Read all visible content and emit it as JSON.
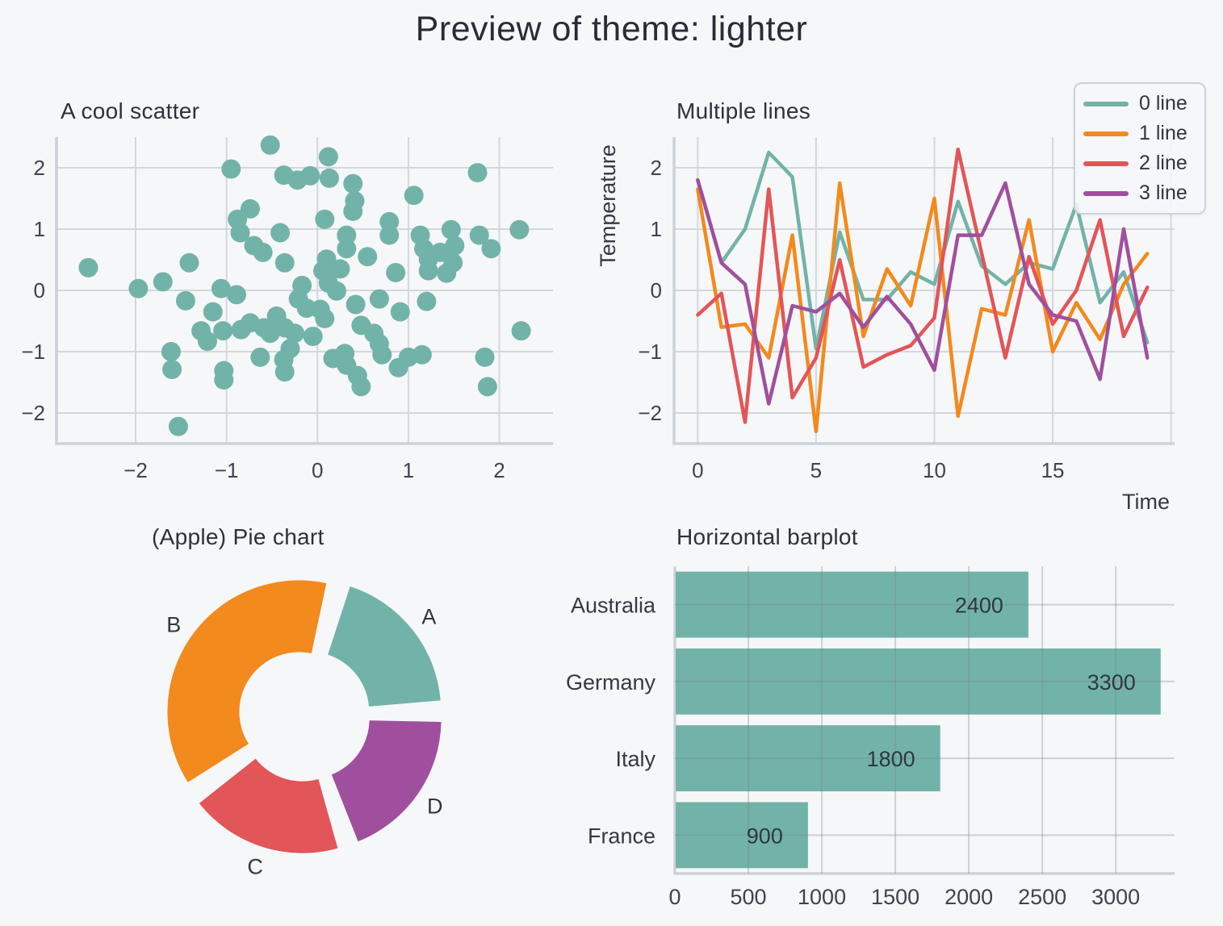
{
  "suptitle": {
    "text": "Preview of theme: lighter"
  },
  "theme": {
    "name": "lighter",
    "background": "#f6f7f9",
    "text_color": "#2b323c",
    "tick_color": "#3c444e",
    "grid_color": "#d3d7dc",
    "spine_color": "#ccd2d9",
    "palette": [
      "#72b3a9",
      "#f28a1d",
      "#e25558",
      "#a04f9e"
    ]
  },
  "chart_data": [
    {
      "id": "scatter",
      "type": "scatter",
      "title": "A cool scatter",
      "color": "#72b3a9",
      "xticks": [
        -2,
        -1,
        0,
        1,
        2
      ],
      "yticks": [
        -2,
        -1,
        0,
        1,
        2
      ],
      "xlim": [
        -2.87,
        2.59
      ],
      "ylim": [
        -2.5,
        2.5
      ],
      "points": [
        [
          -2.52,
          0.37
        ],
        [
          -1.97,
          0.03
        ],
        [
          -1.7,
          0.14
        ],
        [
          -1.41,
          0.45
        ],
        [
          -1.45,
          -0.17
        ],
        [
          -1.61,
          -1.0
        ],
        [
          -1.6,
          -1.29
        ],
        [
          -1.53,
          -2.22
        ],
        [
          -1.15,
          -0.35
        ],
        [
          -1.28,
          -0.66
        ],
        [
          -1.21,
          -0.83
        ],
        [
          -1.04,
          -0.66
        ],
        [
          -0.89,
          -0.07
        ],
        [
          -1.03,
          -1.31
        ],
        [
          -0.95,
          1.98
        ],
        [
          -0.88,
          1.16
        ],
        [
          -0.85,
          0.94
        ],
        [
          -0.74,
          1.33
        ],
        [
          -0.7,
          0.73
        ],
        [
          -0.52,
          2.37
        ],
        [
          -0.37,
          1.88
        ],
        [
          -0.36,
          0.45
        ],
        [
          -0.41,
          0.94
        ],
        [
          -0.22,
          1.8
        ],
        [
          -0.08,
          1.87
        ],
        [
          0.12,
          2.18
        ],
        [
          0.13,
          1.83
        ],
        [
          0.39,
          1.74
        ],
        [
          0.41,
          1.46
        ],
        [
          0.39,
          1.29
        ],
        [
          0.08,
          1.16
        ],
        [
          0.79,
          1.12
        ],
        [
          0.79,
          0.9
        ],
        [
          1.06,
          1.55
        ],
        [
          1.76,
          1.92
        ],
        [
          2.22,
          0.99
        ],
        [
          1.47,
          0.99
        ],
        [
          1.51,
          0.73
        ],
        [
          1.78,
          0.9
        ],
        [
          1.91,
          0.68
        ],
        [
          1.13,
          0.9
        ],
        [
          1.17,
          0.68
        ],
        [
          1.22,
          0.51
        ],
        [
          1.22,
          0.32
        ],
        [
          1.49,
          0.45
        ],
        [
          0.86,
          0.29
        ],
        [
          0.06,
          0.32
        ],
        [
          0.12,
          0.12
        ],
        [
          0.21,
          -0.01
        ],
        [
          -0.17,
          0.08
        ],
        [
          -0.21,
          -0.14
        ],
        [
          -0.12,
          -0.29
        ],
        [
          0.03,
          -0.31
        ],
        [
          0.08,
          -0.46
        ],
        [
          0.42,
          -0.23
        ],
        [
          0.48,
          -0.57
        ],
        [
          0.68,
          -0.14
        ],
        [
          0.91,
          -0.35
        ],
        [
          1.2,
          -0.18
        ],
        [
          0.32,
          0.9
        ],
        [
          0.32,
          0.68
        ],
        [
          -0.74,
          -0.53
        ],
        [
          -0.59,
          -0.61
        ],
        [
          -0.52,
          -0.7
        ],
        [
          -0.36,
          -0.61
        ],
        [
          -0.25,
          -0.7
        ],
        [
          -0.84,
          -0.64
        ],
        [
          -0.63,
          -1.09
        ],
        [
          -0.37,
          -1.13
        ],
        [
          -0.36,
          -1.33
        ],
        [
          0.17,
          -1.11
        ],
        [
          0.3,
          -1.03
        ],
        [
          0.32,
          -1.22
        ],
        [
          0.44,
          -1.39
        ],
        [
          0.48,
          -1.57
        ],
        [
          0.68,
          -0.87
        ],
        [
          0.71,
          -1.05
        ],
        [
          0.89,
          -1.26
        ],
        [
          1.0,
          -1.09
        ],
        [
          1.15,
          -1.05
        ],
        [
          1.84,
          -1.09
        ],
        [
          1.87,
          -1.57
        ],
        [
          2.24,
          -0.66
        ],
        [
          -1.03,
          -1.46
        ],
        [
          -1.06,
          0.03
        ],
        [
          0.1,
          0.51
        ],
        [
          -0.6,
          0.62
        ],
        [
          -0.3,
          -0.95
        ],
        [
          0.55,
          0.55
        ],
        [
          0.62,
          -0.7
        ],
        [
          1.35,
          0.62
        ],
        [
          1.42,
          0.28
        ],
        [
          -0.05,
          -0.75
        ],
        [
          0.25,
          0.35
        ],
        [
          -0.45,
          -0.42
        ]
      ]
    },
    {
      "id": "lines",
      "type": "line",
      "title": "Multiple lines",
      "xlabel": "Time",
      "ylabel": "Temperature",
      "xticks": [
        0,
        5,
        10,
        15
      ],
      "yticks": [
        -2,
        -1,
        0,
        1,
        2
      ],
      "xlim": [
        -1,
        20.15
      ],
      "ylim": [
        -2.5,
        2.5
      ],
      "legend_position": "upper right",
      "x": [
        0,
        1,
        2,
        3,
        4,
        5,
        6,
        7,
        8,
        9,
        10,
        11,
        12,
        13,
        14,
        15,
        16,
        17,
        18,
        19
      ],
      "series": [
        {
          "name": "0 line",
          "color": "#72b3a9",
          "values": [
            1.8,
            0.45,
            1.0,
            2.25,
            1.85,
            -0.95,
            0.95,
            -0.15,
            -0.15,
            0.3,
            0.1,
            1.45,
            0.4,
            0.1,
            0.45,
            0.35,
            1.4,
            -0.2,
            0.3,
            -0.85
          ]
        },
        {
          "name": "1 line",
          "color": "#f28a1d",
          "values": [
            1.65,
            -0.6,
            -0.55,
            -1.1,
            0.9,
            -2.3,
            1.75,
            -0.75,
            0.35,
            -0.25,
            1.5,
            -2.05,
            -0.3,
            -0.4,
            1.15,
            -1.0,
            -0.2,
            -0.8,
            0.1,
            0.6
          ]
        },
        {
          "name": "2 line",
          "color": "#e25558",
          "values": [
            -0.4,
            -0.05,
            -2.15,
            1.65,
            -1.75,
            -1.1,
            0.5,
            -1.25,
            -1.05,
            -0.9,
            -0.45,
            2.3,
            0.6,
            -1.1,
            0.55,
            -0.55,
            0.0,
            1.15,
            -0.75,
            0.05
          ]
        },
        {
          "name": "3 line",
          "color": "#a04f9e",
          "values": [
            1.8,
            0.45,
            0.1,
            -1.85,
            -0.25,
            -0.35,
            -0.05,
            -0.6,
            -0.1,
            -0.55,
            -1.3,
            0.9,
            0.9,
            1.75,
            0.1,
            -0.4,
            -0.5,
            -1.45,
            1.0,
            -1.1
          ]
        }
      ]
    },
    {
      "id": "pie",
      "type": "pie",
      "title": "(Apple) Pie chart",
      "donut": true,
      "start_angle_deg": 18,
      "gap_deg": 6,
      "slices": [
        {
          "label": "A",
          "value": 20,
          "color": "#72b3a9"
        },
        {
          "label": "B",
          "value": 40,
          "color": "#f28a1d"
        },
        {
          "label": "C",
          "value": 20,
          "color": "#e25558"
        },
        {
          "label": "D",
          "value": 20,
          "color": "#a04f9e"
        }
      ]
    },
    {
      "id": "bars",
      "type": "bar",
      "orientation": "horizontal",
      "title": "Horizontal barplot",
      "color": "#72b3a9",
      "categories": [
        "Australia",
        "Germany",
        "Italy",
        "France"
      ],
      "values": [
        2400,
        3300,
        1800,
        900
      ],
      "value_labels": [
        "2400",
        "3300",
        "1800",
        "900"
      ],
      "xticks": [
        0,
        500,
        1000,
        1500,
        2000,
        2500,
        3000
      ],
      "xlim": [
        0,
        3400
      ]
    }
  ]
}
